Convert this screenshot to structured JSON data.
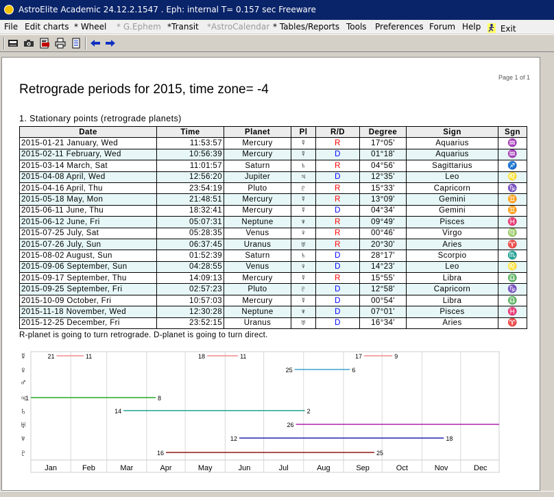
{
  "window": {
    "title": "AstroElite Academic 24.12.2.1547 . Eph: internal T= 0.157 sec Freeware"
  },
  "menu": [
    {
      "label": "File",
      "enabled": true
    },
    {
      "label": "Edit charts",
      "enabled": true
    },
    {
      "label": "* Wheel",
      "enabled": true
    },
    {
      "label": "* G.Ephem",
      "enabled": false
    },
    {
      "label": "*Transit",
      "enabled": true
    },
    {
      "label": "*AstroCalendar",
      "enabled": false
    },
    {
      "label": "* Tables/Reports",
      "enabled": true
    },
    {
      "label": "Tools",
      "enabled": true
    },
    {
      "label": "Preferences",
      "enabled": true
    },
    {
      "label": "Forum",
      "enabled": true
    },
    {
      "label": "Help",
      "enabled": true
    },
    {
      "label": "Exit",
      "enabled": true
    }
  ],
  "toolbar": [
    "save-icon",
    "camera-icon",
    "export-pdf-icon",
    "print-icon",
    "notes-icon",
    "arrow-left-icon",
    "arrow-right-icon"
  ],
  "report": {
    "page_info": "Page 1 of 1",
    "title": "Retrograde periods for 2015, time zone= -4",
    "section_title": "1. Stationary points (retrograde planets)",
    "headers": [
      "Date",
      "Time",
      "Planet",
      "Pl",
      "R/D",
      "Degree",
      "Sign",
      "Sgn"
    ],
    "rows": [
      {
        "date": "2015-01-21 January, Wed",
        "time": "11:53:57",
        "planet": "Mercury",
        "pl": "☿",
        "rd": "R",
        "degree": "17°05'",
        "sign": "Aquarius",
        "sgn": "♒"
      },
      {
        "date": "2015-02-11 February, Wed",
        "time": "10:56:39",
        "planet": "Mercury",
        "pl": "☿",
        "rd": "D",
        "degree": "01°18'",
        "sign": "Aquarius",
        "sgn": "♒"
      },
      {
        "date": "2015-03-14 March, Sat",
        "time": "11:01:57",
        "planet": "Saturn",
        "pl": "♄",
        "rd": "R",
        "degree": "04°56'",
        "sign": "Sagittarius",
        "sgn": "♐"
      },
      {
        "date": "2015-04-08 April, Wed",
        "time": "12:56:20",
        "planet": "Jupiter",
        "pl": "♃",
        "rd": "D",
        "degree": "12°35'",
        "sign": "Leo",
        "sgn": "♌"
      },
      {
        "date": "2015-04-16 April, Thu",
        "time": "23:54:19",
        "planet": "Pluto",
        "pl": "♇",
        "rd": "R",
        "degree": "15°33'",
        "sign": "Capricorn",
        "sgn": "♑"
      },
      {
        "date": "2015-05-18 May, Mon",
        "time": "21:48:51",
        "planet": "Mercury",
        "pl": "☿",
        "rd": "R",
        "degree": "13°09'",
        "sign": "Gemini",
        "sgn": "♊"
      },
      {
        "date": "2015-06-11 June, Thu",
        "time": "18:32:41",
        "planet": "Mercury",
        "pl": "☿",
        "rd": "D",
        "degree": "04°34'",
        "sign": "Gemini",
        "sgn": "♊"
      },
      {
        "date": "2015-06-12 June, Fri",
        "time": "05:07:31",
        "planet": "Neptune",
        "pl": "♆",
        "rd": "R",
        "degree": "09°49'",
        "sign": "Pisces",
        "sgn": "♓"
      },
      {
        "date": "2015-07-25 July, Sat",
        "time": "05:28:35",
        "planet": "Venus",
        "pl": "♀",
        "rd": "R",
        "degree": "00°46'",
        "sign": "Virgo",
        "sgn": "♍"
      },
      {
        "date": "2015-07-26 July, Sun",
        "time": "06:37:45",
        "planet": "Uranus",
        "pl": "♅",
        "rd": "R",
        "degree": "20°30'",
        "sign": "Aries",
        "sgn": "♈"
      },
      {
        "date": "2015-08-02 August, Sun",
        "time": "01:52:39",
        "planet": "Saturn",
        "pl": "♄",
        "rd": "D",
        "degree": "28°17'",
        "sign": "Scorpio",
        "sgn": "♏"
      },
      {
        "date": "2015-09-06 September, Sun",
        "time": "04:28:55",
        "planet": "Venus",
        "pl": "♀",
        "rd": "D",
        "degree": "14°23'",
        "sign": "Leo",
        "sgn": "♌"
      },
      {
        "date": "2015-09-17 September, Thu",
        "time": "14:09:13",
        "planet": "Mercury",
        "pl": "☿",
        "rd": "R",
        "degree": "15°55'",
        "sign": "Libra",
        "sgn": "♎"
      },
      {
        "date": "2015-09-25 September, Fri",
        "time": "02:57:23",
        "planet": "Pluto",
        "pl": "♇",
        "rd": "D",
        "degree": "12°58'",
        "sign": "Capricorn",
        "sgn": "♑"
      },
      {
        "date": "2015-10-09 October, Fri",
        "time": "10:57:03",
        "planet": "Mercury",
        "pl": "☿",
        "rd": "D",
        "degree": "00°54'",
        "sign": "Libra",
        "sgn": "♎"
      },
      {
        "date": "2015-11-18 November, Wed",
        "time": "12:30:28",
        "planet": "Neptune",
        "pl": "♆",
        "rd": "D",
        "degree": "07°01'",
        "sign": "Pisces",
        "sgn": "♓"
      },
      {
        "date": "2015-12-25 December, Fri",
        "time": "23:52:15",
        "planet": "Uranus",
        "pl": "♅",
        "rd": "D",
        "degree": "16°34'",
        "sign": "Aries",
        "sgn": "♈"
      }
    ],
    "note": "R-planet is going to turn retrograde. D-planet is going to turn direct."
  },
  "colors": {
    "retro": "#ff0000",
    "direct": "#0000ff",
    "row_alt": "#e7f7f7",
    "titlebar": "#0a246a"
  },
  "chart_data": {
    "type": "timeline",
    "title": "",
    "x_axis": {
      "unit": "day of year",
      "range": [
        1,
        365
      ],
      "tick_labels": [
        "Jan",
        "Feb",
        "Mar",
        "Apr",
        "May",
        "Jun",
        "Jul",
        "Aug",
        "Sep",
        "Oct",
        "Nov",
        "Dec"
      ]
    },
    "rows": [
      {
        "planet": "Mercury",
        "glyph": "☿",
        "periods": [
          {
            "start_day": 21,
            "end_day": 42,
            "start_label": "21",
            "end_label": "11",
            "color": "#f08a8a"
          },
          {
            "start_day": 138,
            "end_day": 162,
            "start_label": "18",
            "end_label": "11",
            "color": "#f08a8a"
          },
          {
            "start_day": 260,
            "end_day": 282,
            "start_label": "17",
            "end_label": "9",
            "color": "#f08a8a"
          }
        ]
      },
      {
        "planet": "Venus",
        "glyph": "♀",
        "periods": [
          {
            "start_day": 206,
            "end_day": 249,
            "start_label": "25",
            "end_label": "6",
            "color": "#3fa0d0"
          }
        ]
      },
      {
        "planet": "Mars",
        "glyph": "♂",
        "periods": []
      },
      {
        "planet": "Jupiter",
        "glyph": "♃",
        "periods": [
          {
            "start_day": 1,
            "end_day": 98,
            "start_label": "1",
            "end_label": "8",
            "color": "#22aa22"
          }
        ]
      },
      {
        "planet": "Saturn",
        "glyph": "♄",
        "periods": [
          {
            "start_day": 73,
            "end_day": 214,
            "start_label": "14",
            "end_label": "2",
            "color": "#20a090"
          }
        ]
      },
      {
        "planet": "Uranus",
        "glyph": "♅",
        "periods": [
          {
            "start_day": 207,
            "end_day": 365,
            "start_label": "26",
            "end_label": "",
            "color": "#b020b0"
          }
        ]
      },
      {
        "planet": "Neptune",
        "glyph": "♆",
        "periods": [
          {
            "start_day": 163,
            "end_day": 322,
            "start_label": "12",
            "end_label": "18",
            "color": "#2020b0"
          }
        ]
      },
      {
        "planet": "Pluto",
        "glyph": "♇",
        "periods": [
          {
            "start_day": 106,
            "end_day": 268,
            "start_label": "16",
            "end_label": "25",
            "color": "#901515"
          }
        ]
      }
    ]
  }
}
